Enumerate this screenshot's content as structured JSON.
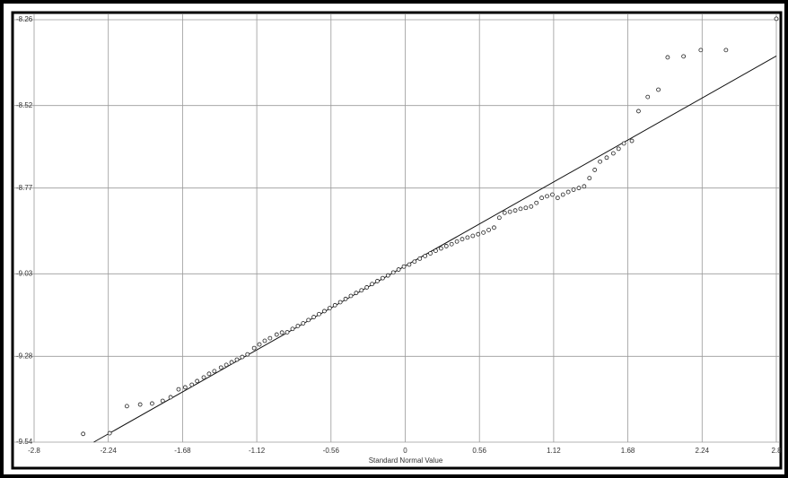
{
  "chart_data": {
    "type": "scatter",
    "x_label": "Standard Normal Value",
    "xlim": [
      -2.8,
      2.8
    ],
    "ylim": [
      -9.54,
      -8.26
    ],
    "xticks": [
      -2.8,
      -2.24,
      -1.68,
      -1.12,
      -0.56,
      0,
      0.56,
      1.12,
      1.68,
      2.24,
      2.8
    ],
    "yticks": [
      -9.54,
      -9.28,
      -9.03,
      -8.77,
      -8.52,
      -8.26
    ],
    "grid": true,
    "marker_color": "#222222",
    "line_color": "#111111",
    "x": [
      -2.43,
      -2.23,
      -2.1,
      -2.0,
      -1.91,
      -1.83,
      -1.77,
      -1.71,
      -1.66,
      -1.61,
      -1.57,
      -1.52,
      -1.48,
      -1.44,
      -1.39,
      -1.35,
      -1.31,
      -1.27,
      -1.23,
      -1.19,
      -1.14,
      -1.1,
      -1.06,
      -1.02,
      -0.97,
      -0.93,
      -0.89,
      -0.85,
      -0.81,
      -0.77,
      -0.73,
      -0.69,
      -0.65,
      -0.61,
      -0.57,
      -0.53,
      -0.49,
      -0.45,
      -0.41,
      -0.37,
      -0.33,
      -0.29,
      -0.25,
      -0.21,
      -0.17,
      -0.13,
      -0.09,
      -0.05,
      -0.01,
      0.03,
      0.07,
      0.11,
      0.15,
      0.19,
      0.23,
      0.27,
      0.31,
      0.35,
      0.39,
      0.43,
      0.47,
      0.51,
      0.55,
      0.59,
      0.63,
      0.67,
      0.71,
      0.75,
      0.79,
      0.83,
      0.87,
      0.91,
      0.95,
      0.99,
      1.03,
      1.07,
      1.11,
      1.15,
      1.19,
      1.23,
      1.27,
      1.31,
      1.35,
      1.39,
      1.43,
      1.47,
      1.52,
      1.57,
      1.61,
      1.65,
      1.71,
      1.76,
      1.83,
      1.91,
      1.98,
      2.1,
      2.23,
      2.42,
      2.8
    ],
    "values": [
      -9.515,
      -9.513,
      -9.431,
      -9.426,
      -9.423,
      -9.415,
      -9.404,
      -9.38,
      -9.374,
      -9.366,
      -9.355,
      -9.344,
      -9.333,
      -9.325,
      -9.314,
      -9.306,
      -9.298,
      -9.29,
      -9.282,
      -9.274,
      -9.255,
      -9.244,
      -9.233,
      -9.225,
      -9.214,
      -9.208,
      -9.207,
      -9.197,
      -9.188,
      -9.18,
      -9.17,
      -9.161,
      -9.152,
      -9.143,
      -9.134,
      -9.125,
      -9.116,
      -9.106,
      -9.097,
      -9.088,
      -9.08,
      -9.071,
      -9.061,
      -9.052,
      -9.043,
      -9.035,
      -9.026,
      -9.017,
      -9.008,
      -9.002,
      -8.993,
      -8.984,
      -8.976,
      -8.968,
      -8.96,
      -8.953,
      -8.946,
      -8.94,
      -8.932,
      -8.925,
      -8.92,
      -8.915,
      -8.91,
      -8.905,
      -8.897,
      -8.89,
      -8.86,
      -8.845,
      -8.842,
      -8.838,
      -8.833,
      -8.83,
      -8.826,
      -8.815,
      -8.8,
      -8.795,
      -8.79,
      -8.8,
      -8.79,
      -8.782,
      -8.775,
      -8.77,
      -8.765,
      -8.74,
      -8.715,
      -8.69,
      -8.678,
      -8.665,
      -8.651,
      -8.635,
      -8.627,
      -8.537,
      -8.494,
      -8.472,
      -8.374,
      -8.371,
      -8.352,
      -8.352,
      -8.257
    ],
    "reference_line": {
      "x": [
        -2.35,
        2.8
      ],
      "y": [
        -9.54,
        -8.37
      ]
    }
  }
}
